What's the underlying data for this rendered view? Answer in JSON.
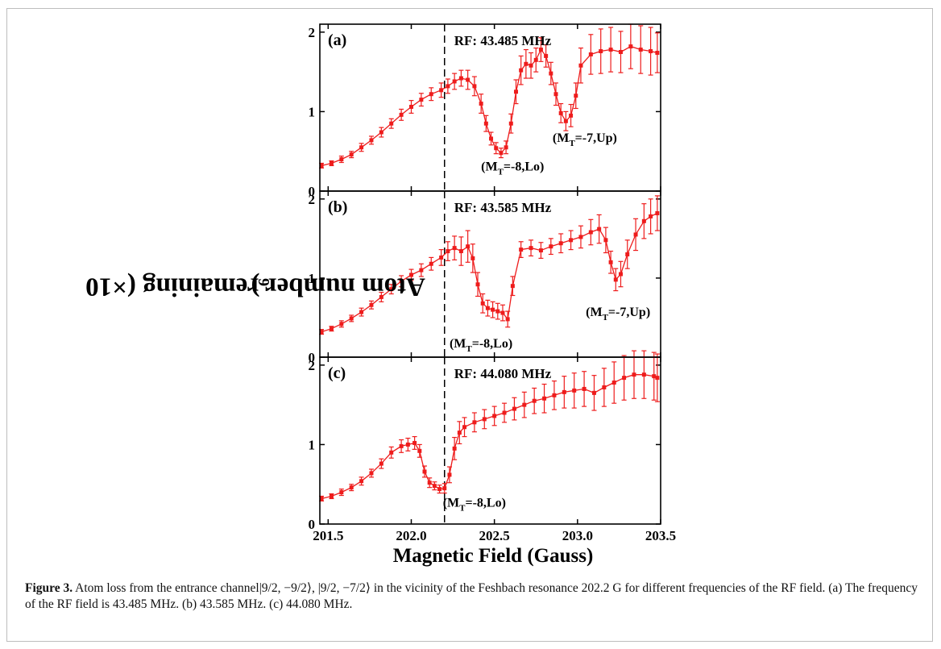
{
  "figure": {
    "ylabel": "Atom number remaining (×10",
    "ylabel_sup": "6",
    "ylabel_end": ")",
    "xlabel": "Magnetic Field (Gauss)",
    "caption_label": "Figure 3.",
    "caption_text": " Atom loss from the entrance channel|9/2, −9/2⟩, |9/2, −7/2⟩ in the vicinity of the Feshbach resonance 202.2 G for different frequencies of the RF field. (a) The frequency of the RF field is 43.485 MHz. (b) 43.585 MHz. (c) 44.080 MHz."
  },
  "colors": {
    "series": "#ee1c1c",
    "axis": "#000000",
    "guide": "#000000"
  },
  "chart_data": [
    {
      "type": "line",
      "panel_label": "(a)",
      "rf_label": "RF: 43.485 MHz",
      "xlim": [
        201.45,
        203.5
      ],
      "ylim": [
        0,
        2.1
      ],
      "x_ticks": [
        201.5,
        202.0,
        202.5,
        203.0,
        203.5
      ],
      "y_ticks": [
        0,
        1,
        2
      ],
      "y_tick_labels": [
        "0",
        "1",
        "2"
      ],
      "vline_x": 202.2,
      "annotations": [
        {
          "x": 202.42,
          "y": 0.26,
          "main": "(M",
          "sub": "T",
          "rest": "=-8,Lo)"
        },
        {
          "x": 202.85,
          "y": 0.62,
          "main": "(M",
          "sub": "T",
          "rest": "=-7,Up)"
        }
      ],
      "x": [
        201.46,
        201.52,
        201.58,
        201.64,
        201.7,
        201.76,
        201.82,
        201.88,
        201.94,
        202.0,
        202.06,
        202.12,
        202.18,
        202.22,
        202.26,
        202.3,
        202.34,
        202.38,
        202.42,
        202.45,
        202.48,
        202.51,
        202.54,
        202.57,
        202.6,
        202.63,
        202.66,
        202.69,
        202.72,
        202.75,
        202.78,
        202.81,
        202.84,
        202.87,
        202.9,
        202.93,
        202.96,
        202.99,
        203.02,
        203.08,
        203.14,
        203.2,
        203.26,
        203.32,
        203.38,
        203.44,
        203.48
      ],
      "y": [
        0.32,
        0.35,
        0.4,
        0.46,
        0.55,
        0.64,
        0.74,
        0.85,
        0.96,
        1.06,
        1.15,
        1.22,
        1.27,
        1.32,
        1.38,
        1.42,
        1.4,
        1.32,
        1.1,
        0.85,
        0.66,
        0.54,
        0.48,
        0.55,
        0.85,
        1.25,
        1.52,
        1.6,
        1.58,
        1.65,
        1.78,
        1.7,
        1.48,
        1.22,
        0.98,
        0.88,
        0.95,
        1.2,
        1.58,
        1.72,
        1.76,
        1.78,
        1.75,
        1.82,
        1.78,
        1.76,
        1.74
      ],
      "err": [
        0.03,
        0.03,
        0.04,
        0.04,
        0.05,
        0.05,
        0.06,
        0.06,
        0.07,
        0.08,
        0.08,
        0.08,
        0.09,
        0.09,
        0.1,
        0.1,
        0.12,
        0.12,
        0.12,
        0.1,
        0.08,
        0.07,
        0.06,
        0.08,
        0.12,
        0.15,
        0.18,
        0.18,
        0.16,
        0.15,
        0.15,
        0.14,
        0.14,
        0.14,
        0.12,
        0.12,
        0.14,
        0.16,
        0.22,
        0.25,
        0.28,
        0.28,
        0.26,
        0.28,
        0.3,
        0.3,
        0.25
      ]
    },
    {
      "type": "line",
      "panel_label": "(b)",
      "rf_label": "RF: 43.585 MHz",
      "xlim": [
        201.45,
        203.5
      ],
      "ylim": [
        0,
        2.1
      ],
      "x_ticks": [
        201.5,
        202.0,
        202.5,
        203.0,
        203.5
      ],
      "y_ticks": [
        0,
        1,
        2
      ],
      "y_tick_labels": [
        "0",
        "1",
        "2"
      ],
      "vline_x": 202.2,
      "annotations": [
        {
          "x": 202.23,
          "y": 0.12,
          "main": "(M",
          "sub": "T",
          "rest": "=-8,Lo)"
        },
        {
          "x": 203.05,
          "y": 0.52,
          "main": "(M",
          "sub": "T",
          "rest": "=-7,Up)"
        }
      ],
      "x": [
        201.46,
        201.52,
        201.58,
        201.64,
        201.7,
        201.76,
        201.82,
        201.88,
        201.94,
        202.0,
        202.06,
        202.12,
        202.18,
        202.22,
        202.26,
        202.3,
        202.34,
        202.37,
        202.4,
        202.43,
        202.46,
        202.49,
        202.52,
        202.55,
        202.58,
        202.61,
        202.66,
        202.72,
        202.78,
        202.84,
        202.9,
        202.96,
        203.02,
        203.08,
        203.13,
        203.17,
        203.2,
        203.23,
        203.26,
        203.3,
        203.35,
        203.4,
        203.44,
        203.48
      ],
      "y": [
        0.32,
        0.36,
        0.42,
        0.49,
        0.57,
        0.66,
        0.76,
        0.86,
        0.96,
        1.04,
        1.1,
        1.18,
        1.26,
        1.34,
        1.38,
        1.34,
        1.4,
        1.25,
        0.92,
        0.68,
        0.62,
        0.6,
        0.58,
        0.56,
        0.48,
        0.9,
        1.36,
        1.38,
        1.35,
        1.4,
        1.44,
        1.48,
        1.52,
        1.58,
        1.62,
        1.48,
        1.2,
        0.98,
        1.05,
        1.3,
        1.55,
        1.72,
        1.78,
        1.82
      ],
      "err": [
        0.03,
        0.03,
        0.04,
        0.04,
        0.05,
        0.05,
        0.06,
        0.06,
        0.07,
        0.07,
        0.08,
        0.08,
        0.1,
        0.12,
        0.15,
        0.18,
        0.2,
        0.18,
        0.15,
        0.12,
        0.1,
        0.1,
        0.1,
        0.1,
        0.1,
        0.12,
        0.1,
        0.1,
        0.1,
        0.1,
        0.12,
        0.12,
        0.14,
        0.16,
        0.18,
        0.16,
        0.14,
        0.14,
        0.16,
        0.18,
        0.2,
        0.22,
        0.22,
        0.22
      ]
    },
    {
      "type": "line",
      "panel_label": "(c)",
      "rf_label": "RF: 44.080 MHz",
      "xlim": [
        201.45,
        203.5
      ],
      "ylim": [
        0,
        2.1
      ],
      "x_ticks": [
        201.5,
        202.0,
        202.5,
        203.0,
        203.5
      ],
      "x_tick_labels": [
        "201.5",
        "202.0",
        "202.5",
        "203.0",
        "203.5"
      ],
      "y_ticks": [
        0,
        1,
        2
      ],
      "y_tick_labels": [
        "0",
        "1",
        "2"
      ],
      "vline_x": 202.2,
      "annotations": [
        {
          "x": 202.19,
          "y": 0.22,
          "main": "(M",
          "sub": "T",
          "rest": "=-8,Lo)"
        }
      ],
      "x": [
        201.46,
        201.52,
        201.58,
        201.64,
        201.7,
        201.76,
        201.82,
        201.88,
        201.94,
        201.98,
        202.02,
        202.05,
        202.08,
        202.11,
        202.14,
        202.17,
        202.2,
        202.23,
        202.26,
        202.29,
        202.32,
        202.38,
        202.44,
        202.5,
        202.56,
        202.62,
        202.68,
        202.74,
        202.8,
        202.86,
        202.92,
        202.98,
        203.04,
        203.1,
        203.16,
        203.22,
        203.28,
        203.34,
        203.4,
        203.46,
        203.48
      ],
      "y": [
        0.32,
        0.35,
        0.4,
        0.46,
        0.54,
        0.64,
        0.76,
        0.9,
        0.98,
        1.0,
        1.02,
        0.92,
        0.66,
        0.52,
        0.48,
        0.44,
        0.45,
        0.62,
        0.95,
        1.15,
        1.22,
        1.28,
        1.32,
        1.36,
        1.4,
        1.45,
        1.5,
        1.55,
        1.58,
        1.62,
        1.66,
        1.68,
        1.7,
        1.65,
        1.72,
        1.78,
        1.84,
        1.88,
        1.88,
        1.86,
        1.84
      ],
      "err": [
        0.03,
        0.03,
        0.04,
        0.04,
        0.05,
        0.05,
        0.06,
        0.07,
        0.08,
        0.08,
        0.08,
        0.08,
        0.07,
        0.06,
        0.05,
        0.05,
        0.06,
        0.1,
        0.14,
        0.14,
        0.12,
        0.12,
        0.12,
        0.12,
        0.12,
        0.14,
        0.16,
        0.16,
        0.18,
        0.18,
        0.2,
        0.22,
        0.22,
        0.22,
        0.24,
        0.26,
        0.28,
        0.3,
        0.3,
        0.3,
        0.3
      ]
    }
  ]
}
